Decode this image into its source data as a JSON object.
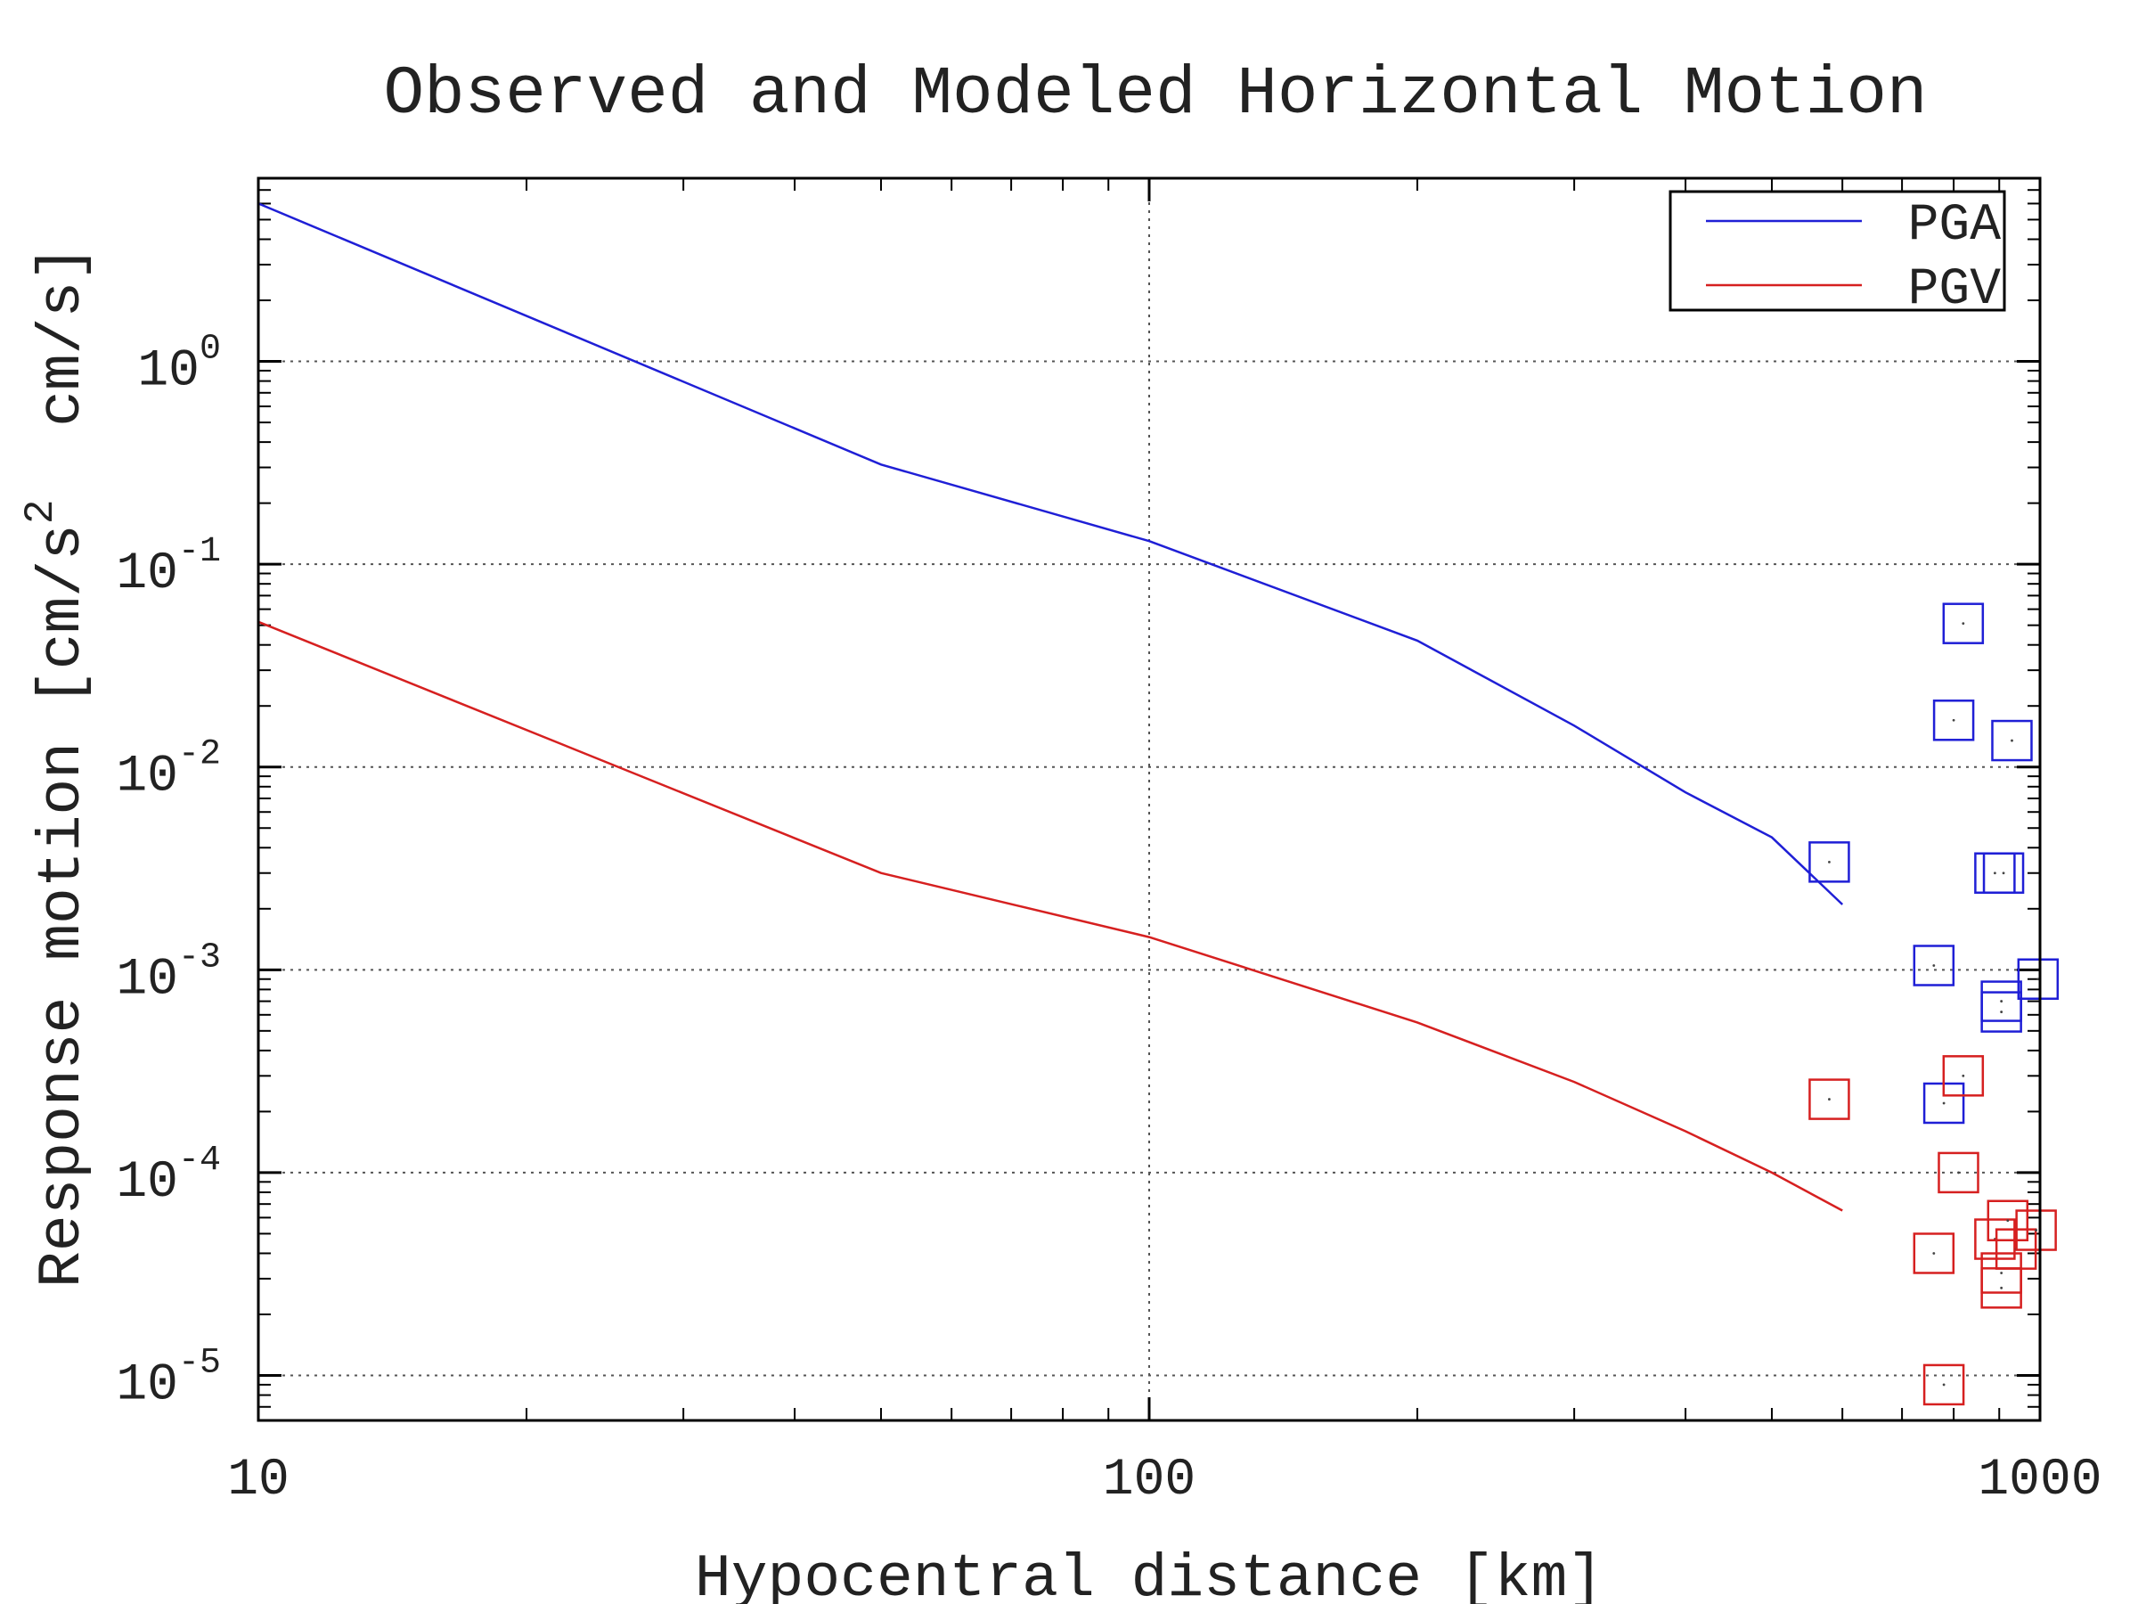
{
  "chart_data": {
    "type": "line",
    "title": "Observed and Modeled Horizontal Motion",
    "xlabel": "Hypocentral distance [km]",
    "ylabel": "Response motion [cm/s² cm/s]",
    "ylabel_parts": {
      "pre": "Response motion [cm/s",
      "sup": "2",
      "post": "  cm/s]"
    },
    "xscale": "log",
    "yscale": "log",
    "xlim": [
      10,
      1000
    ],
    "ylim": [
      6e-06,
      8
    ],
    "grid": true,
    "legend_position": "top-right",
    "x_ticks": [
      {
        "value": 10,
        "label": "10"
      },
      {
        "value": 100,
        "label": "100"
      },
      {
        "value": 1000,
        "label": "1000"
      }
    ],
    "y_ticks": [
      {
        "value": 1,
        "base": "10",
        "exp": "0"
      },
      {
        "value": 0.1,
        "base": "10",
        "exp": "-1"
      },
      {
        "value": 0.01,
        "base": "10",
        "exp": "-2"
      },
      {
        "value": 0.001,
        "base": "10",
        "exp": "-3"
      },
      {
        "value": 0.0001,
        "base": "10",
        "exp": "-4"
      },
      {
        "value": 1e-05,
        "base": "10",
        "exp": "-5"
      }
    ],
    "series": [
      {
        "name": "PGA",
        "color": "#1f1fd6",
        "line": [
          [
            10,
            6.0
          ],
          [
            50,
            0.31
          ],
          [
            100,
            0.13
          ],
          [
            200,
            0.042
          ],
          [
            300,
            0.016
          ],
          [
            400,
            0.0075
          ],
          [
            500,
            0.0045
          ],
          [
            600,
            0.0021
          ]
        ],
        "observed": [
          [
            580,
            0.0034
          ],
          [
            760,
            0.00105
          ],
          [
            820,
            0.051
          ],
          [
            800,
            0.017
          ],
          [
            930,
            0.0135
          ],
          [
            890,
            0.003
          ],
          [
            910,
            0.003
          ],
          [
            905,
            0.0007
          ],
          [
            905,
            0.00062
          ],
          [
            995,
            0.0009
          ],
          [
            780,
            0.00022
          ]
        ]
      },
      {
        "name": "PGV",
        "color": "#d62020",
        "line": [
          [
            10,
            0.052
          ],
          [
            50,
            0.003
          ],
          [
            100,
            0.00145
          ],
          [
            200,
            0.00055
          ],
          [
            300,
            0.00028
          ],
          [
            400,
            0.00016
          ],
          [
            500,
            0.0001
          ],
          [
            600,
            6.5e-05
          ]
        ],
        "observed": [
          [
            580,
            0.00023
          ],
          [
            820,
            0.0003
          ],
          [
            810,
            0.0001
          ],
          [
            760,
            4e-05
          ],
          [
            780,
            9e-06
          ],
          [
            890,
            4.7e-05
          ],
          [
            920,
            5.8e-05
          ],
          [
            940,
            4.2e-05
          ],
          [
            905,
            3.2e-05
          ],
          [
            905,
            2.7e-05
          ],
          [
            990,
            5.2e-05
          ]
        ]
      }
    ]
  }
}
